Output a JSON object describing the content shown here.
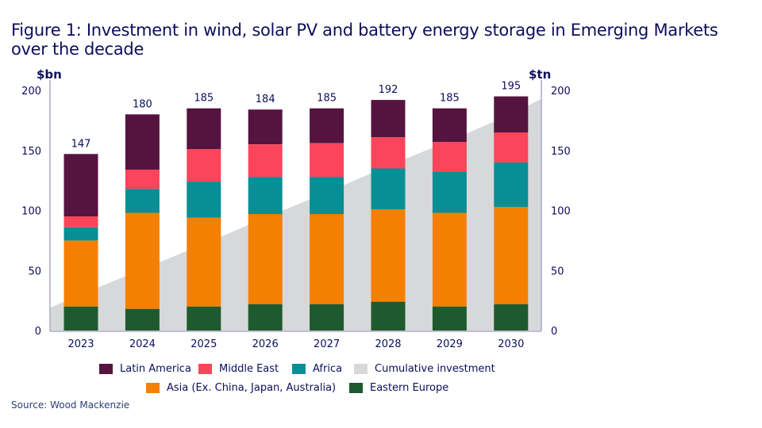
{
  "title": "Figure 1: Investment in wind, solar PV and battery energy storage in Emerging Markets over the decade",
  "source": "Source: Wood Mackenzie",
  "colors": {
    "latin_america": "#55143f",
    "middle_east": "#fc445a",
    "africa": "#088e95",
    "asia": "#f57f00",
    "eastern_europe": "#1f5a2e",
    "cumulative": "#d7d8da",
    "text": "#0d0e5c",
    "axis": "#a9aac8"
  },
  "chart_data": {
    "type": "bar",
    "stacked": true,
    "title": "Figure 1: Investment in wind, solar PV and battery energy storage in Emerging Markets over the decade",
    "categories": [
      "2023",
      "2024",
      "2025",
      "2026",
      "2027",
      "2028",
      "2029",
      "2030"
    ],
    "ylabel": "$bn",
    "y2label": "$tn",
    "ylim": [
      0,
      200
    ],
    "y2lim": [
      0,
      200
    ],
    "yticks": [
      "0",
      "50",
      "100",
      "150",
      "200"
    ],
    "y2ticks": [
      "0",
      "50",
      "100",
      "150",
      "200"
    ],
    "grid": false,
    "legend_position": "bottom",
    "totals": [
      147,
      180,
      185,
      184,
      185,
      192,
      185,
      195
    ],
    "total_labels": [
      "147",
      "180",
      "185",
      "184",
      "185",
      "192",
      "185",
      "195"
    ],
    "series": [
      {
        "key": "eastern_europe",
        "name": "Eastern Europe",
        "values": [
          20,
          18,
          20,
          22,
          22,
          24,
          20,
          22
        ]
      },
      {
        "key": "asia",
        "name": "Asia (Ex. China, Japan, Australia)",
        "values": [
          55,
          80,
          74,
          75,
          75,
          77,
          78,
          81
        ]
      },
      {
        "key": "africa",
        "name": "Africa",
        "values": [
          11,
          20,
          30,
          31,
          31,
          34,
          34,
          37
        ]
      },
      {
        "key": "middle_east",
        "name": "Middle East",
        "values": [
          9,
          16,
          27,
          27,
          28,
          26,
          25,
          25
        ]
      },
      {
        "key": "latin_america",
        "name": "Latin America",
        "values": [
          52,
          46,
          34,
          29,
          29,
          31,
          28,
          30
        ]
      }
    ],
    "area_series": {
      "name": "Cumulative investment",
      "axis": "right",
      "start_value": 19,
      "end_value": 193,
      "values": [
        30,
        51,
        72,
        94,
        115,
        137,
        158,
        180
      ]
    }
  },
  "legend": {
    "row1": [
      {
        "key": "latin_america",
        "label": "Latin America"
      },
      {
        "key": "middle_east",
        "label": "Middle East"
      },
      {
        "key": "africa",
        "label": "Africa"
      },
      {
        "key": "cumulative",
        "label": "Cumulative investment"
      }
    ],
    "row2": [
      {
        "key": "asia",
        "label": "Asia (Ex. China, Japan, Australia)"
      },
      {
        "key": "eastern_europe",
        "label": "Eastern Europe"
      }
    ]
  }
}
